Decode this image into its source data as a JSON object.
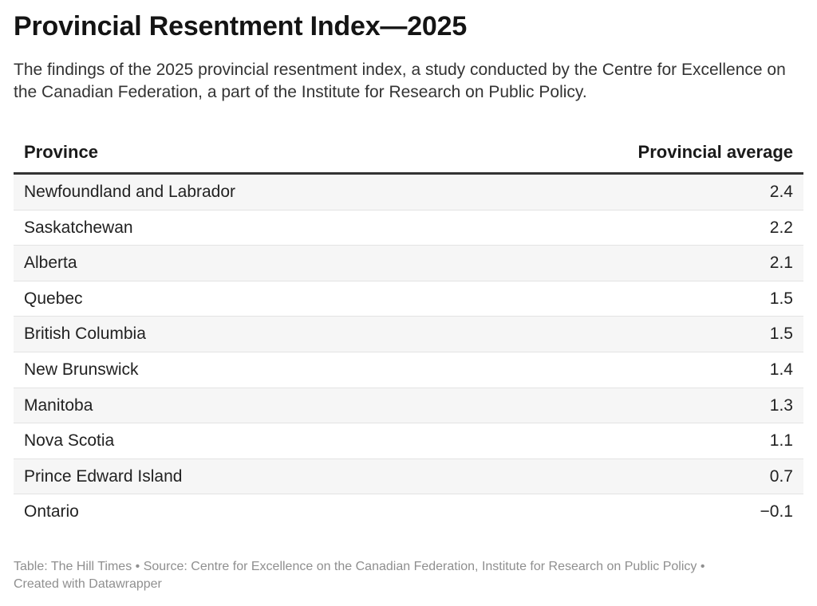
{
  "title": "Provincial Resentment Index—2025",
  "subtitle": "The findings of the 2025 provincial resentment index, a study conducted by the Centre for Excellence on the Canadian Federation, a part of the Institute for Research on Public Policy.",
  "footer": {
    "line1": "Table: The Hill Times • Source: Centre for Excellence on the Canadian Federation, Institute for Research on Public Policy •",
    "line2": "Created with Datawrapper"
  },
  "chart_data": {
    "type": "table",
    "columns": [
      "Province",
      "Provincial average"
    ],
    "rows": [
      {
        "province": "Newfoundland and Labrador",
        "average": "2.4"
      },
      {
        "province": "Saskatchewan",
        "average": "2.2"
      },
      {
        "province": "Alberta",
        "average": "2.1"
      },
      {
        "province": "Quebec",
        "average": "1.5"
      },
      {
        "province": "British Columbia",
        "average": "1.5"
      },
      {
        "province": "New Brunswick",
        "average": "1.4"
      },
      {
        "province": "Manitoba",
        "average": "1.3"
      },
      {
        "province": "Nova Scotia",
        "average": "1.1"
      },
      {
        "province": "Prince Edward Island",
        "average": "0.7"
      },
      {
        "province": "Ontario",
        "average": "−0.1"
      }
    ],
    "colors": {
      "row_shade": "#f6f6f6",
      "header_rule": "#333333",
      "footer_text": "#8f8f8f"
    }
  }
}
